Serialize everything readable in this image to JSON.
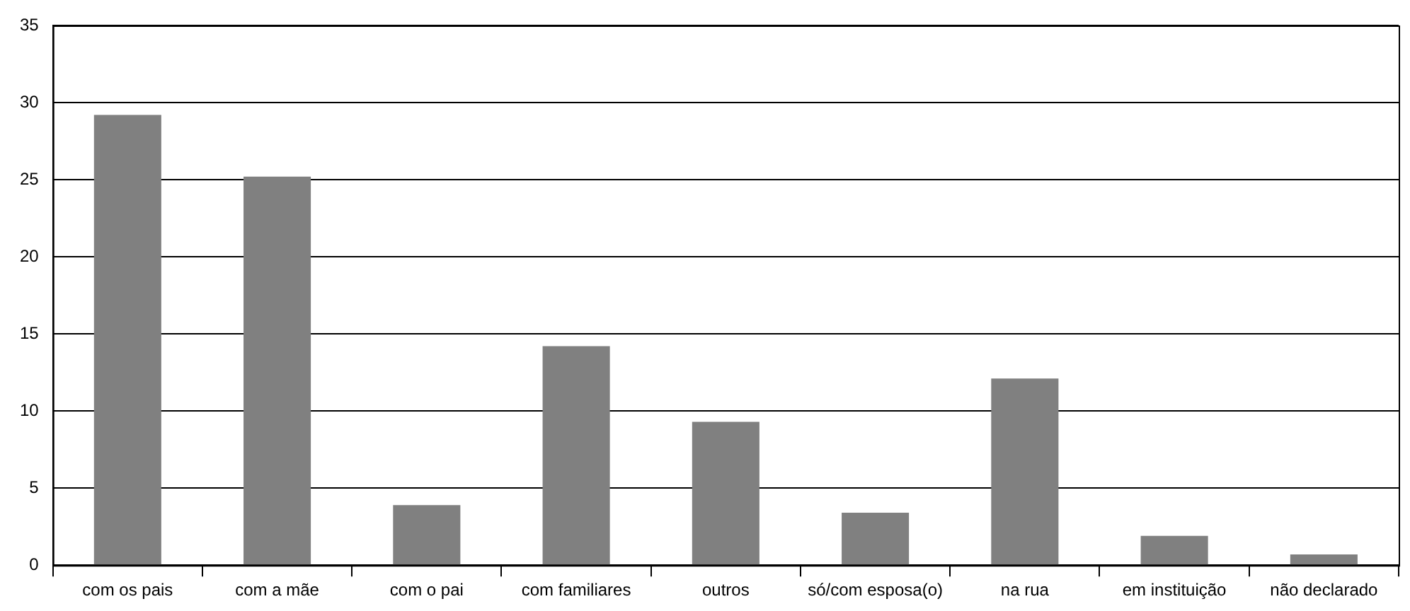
{
  "chart_data": {
    "type": "bar",
    "categories": [
      "com os pais",
      "com a mãe",
      "com o pai",
      "com familiares",
      "outros",
      "só/com esposa(o)",
      "na rua",
      "em instituição",
      "não declarado"
    ],
    "values": [
      29.2,
      25.2,
      3.9,
      14.2,
      9.3,
      3.4,
      12.1,
      1.9,
      0.7
    ],
    "color": "#808080",
    "ylim": [
      0,
      35
    ],
    "yticks": [
      0,
      5,
      10,
      15,
      20,
      25,
      30,
      35
    ],
    "grid": "y",
    "legend": false
  }
}
